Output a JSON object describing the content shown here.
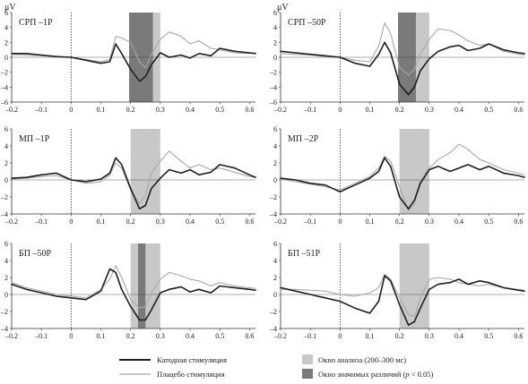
{
  "units": "μV",
  "colors": {
    "cathodal": "#1e1e1e",
    "placebo": "#a8a8a8",
    "analysis_window": "#c8c8c8",
    "significant_window": "#7a7a7a",
    "axis": "#333333"
  },
  "legend": {
    "cathodal": "Катодная стимуляция",
    "placebo": "Плацебо стимуляция",
    "analysis_window": "Окно анализа (200–300 мс)",
    "significant_window_prefix": "Окно значимых различий (",
    "significant_window_p": "p",
    "significant_window_suffix": " < 0.05)"
  },
  "chart_data": [
    {
      "type": "line",
      "label": "СРП   –1Р",
      "xlim": [
        -0.2,
        0.62
      ],
      "ylim": [
        -6,
        6
      ],
      "xticks": [
        "–0.2",
        "–0.1",
        "0",
        "0.1",
        "0.2",
        "0.3",
        "0.4",
        "0.5",
        "0.6"
      ],
      "yticks": [
        "6",
        "4",
        "2",
        "0",
        "–2",
        "–4",
        "–6"
      ],
      "analysis_window": [
        0.2,
        0.3
      ],
      "significant_window": [
        0.195,
        0.275
      ],
      "series": [
        {
          "name": "Катодная стимуляция",
          "x": [
            -0.2,
            -0.15,
            -0.1,
            -0.05,
            0,
            0.05,
            0.1,
            0.13,
            0.15,
            0.17,
            0.2,
            0.23,
            0.25,
            0.27,
            0.3,
            0.33,
            0.37,
            0.4,
            0.43,
            0.47,
            0.5,
            0.55,
            0.6,
            0.62
          ],
          "y": [
            0.5,
            0.5,
            0.3,
            0.1,
            0,
            -0.4,
            -0.8,
            -0.6,
            1.8,
            0.5,
            -1.6,
            -3.2,
            -2.6,
            -1.0,
            0.6,
            0.0,
            0.3,
            -0.1,
            0.5,
            0.2,
            1.2,
            0.8,
            0.6,
            0.5
          ]
        },
        {
          "name": "Плацебо стимуляция",
          "x": [
            -0.2,
            -0.15,
            -0.1,
            -0.05,
            0,
            0.05,
            0.1,
            0.13,
            0.15,
            0.17,
            0.2,
            0.23,
            0.25,
            0.27,
            0.3,
            0.33,
            0.37,
            0.4,
            0.43,
            0.47,
            0.5,
            0.55,
            0.6,
            0.62
          ],
          "y": [
            0.4,
            0.3,
            0.2,
            0.1,
            0,
            -0.3,
            -0.6,
            -0.3,
            2.8,
            2.6,
            2.0,
            -0.6,
            -1.4,
            0.4,
            2.4,
            3.4,
            2.8,
            1.8,
            2.2,
            1.2,
            1.0,
            0.6,
            0.5,
            0.6
          ]
        }
      ]
    },
    {
      "type": "line",
      "label": "СРП   –50Р",
      "xlim": [
        -0.2,
        0.62
      ],
      "ylim": [
        -6,
        6
      ],
      "xticks": [
        "–0.2",
        "–0.1",
        "0",
        "0.1",
        "0.2",
        "0.3",
        "0.4",
        "0.5",
        "0.6"
      ],
      "yticks": [
        "6",
        "4",
        "2",
        "0",
        "–2",
        "–4",
        "–6"
      ],
      "analysis_window": [
        0.2,
        0.3
      ],
      "significant_window": [
        0.195,
        0.255
      ],
      "series": [
        {
          "name": "Катодная стимуляция",
          "x": [
            -0.2,
            -0.15,
            -0.1,
            -0.05,
            0,
            0.05,
            0.1,
            0.13,
            0.15,
            0.17,
            0.2,
            0.23,
            0.25,
            0.27,
            0.3,
            0.33,
            0.37,
            0.4,
            0.43,
            0.47,
            0.5,
            0.55,
            0.6,
            0.62
          ],
          "y": [
            0.8,
            0.6,
            0.4,
            0.2,
            0,
            -0.8,
            -1.2,
            0.4,
            2.0,
            0.6,
            -3.6,
            -5.0,
            -4.0,
            -1.8,
            -0.2,
            0.8,
            1.4,
            1.6,
            0.9,
            1.2,
            1.8,
            1.0,
            0.6,
            0.5
          ]
        },
        {
          "name": "Плацебо стимуляция",
          "x": [
            -0.2,
            -0.15,
            -0.1,
            -0.05,
            0,
            0.05,
            0.1,
            0.13,
            0.15,
            0.17,
            0.2,
            0.23,
            0.25,
            0.27,
            0.3,
            0.33,
            0.37,
            0.4,
            0.43,
            0.47,
            0.5,
            0.55,
            0.6,
            0.62
          ],
          "y": [
            0.5,
            0.4,
            0.3,
            0.1,
            0,
            -0.4,
            -0.6,
            1.5,
            4.6,
            3.2,
            -1.4,
            -2.4,
            -1.6,
            0.4,
            2.4,
            3.8,
            3.6,
            3.0,
            2.2,
            1.6,
            1.8,
            0.8,
            0.4,
            0.3
          ]
        }
      ]
    },
    {
      "type": "line",
      "label": "МП   –1Р",
      "xlim": [
        -0.2,
        0.62
      ],
      "ylim": [
        -4,
        6
      ],
      "xticks": [
        "–0.2",
        "–0.1",
        "0",
        "0.1",
        "0.2",
        "0.3",
        "0.4",
        "0.5",
        "0.6"
      ],
      "yticks": [
        "6",
        "4",
        "2",
        "0",
        "–2",
        "–4"
      ],
      "analysis_window": [
        0.2,
        0.3
      ],
      "significant_window": null,
      "series": [
        {
          "name": "Катодная стимуляция",
          "x": [
            -0.2,
            -0.15,
            -0.1,
            -0.05,
            0,
            0.05,
            0.1,
            0.13,
            0.15,
            0.17,
            0.2,
            0.23,
            0.25,
            0.27,
            0.3,
            0.33,
            0.37,
            0.4,
            0.43,
            0.47,
            0.5,
            0.55,
            0.6,
            0.62
          ],
          "y": [
            0.2,
            0.3,
            0.6,
            0.8,
            0,
            -0.2,
            0.1,
            0.8,
            2.6,
            1.8,
            -1.0,
            -3.4,
            -3.0,
            -1.0,
            0.2,
            1.2,
            0.8,
            1.2,
            0.6,
            0.9,
            1.8,
            1.4,
            0.6,
            0.3
          ]
        },
        {
          "name": "Плацебо стимуляция",
          "x": [
            -0.2,
            -0.15,
            -0.1,
            -0.05,
            0,
            0.05,
            0.1,
            0.13,
            0.15,
            0.17,
            0.2,
            0.23,
            0.25,
            0.27,
            0.3,
            0.33,
            0.37,
            0.4,
            0.43,
            0.47,
            0.5,
            0.55,
            0.6,
            0.62
          ],
          "y": [
            0.1,
            0.2,
            0.4,
            0.5,
            0,
            -0.4,
            -0.2,
            0.6,
            2.0,
            1.4,
            -1.2,
            -2.8,
            -1.8,
            0.8,
            2.2,
            3.4,
            2.2,
            1.4,
            1.8,
            1.2,
            1.4,
            0.9,
            0.4,
            0.3
          ]
        }
      ]
    },
    {
      "type": "line",
      "label": "МП   –2Р",
      "xlim": [
        -0.2,
        0.62
      ],
      "ylim": [
        -4,
        6
      ],
      "xticks": [
        "–0.2",
        "–0.1",
        "0",
        "0.1",
        "0.2",
        "0.3",
        "0.4",
        "0.5",
        "0.6"
      ],
      "yticks": [
        "6",
        "4",
        "2",
        "0",
        "–2",
        "–4"
      ],
      "analysis_window": [
        0.2,
        0.3
      ],
      "significant_window": null,
      "series": [
        {
          "name": "Катодная стимуляция",
          "x": [
            -0.2,
            -0.15,
            -0.1,
            -0.05,
            0,
            0.05,
            0.1,
            0.13,
            0.15,
            0.17,
            0.2,
            0.23,
            0.25,
            0.27,
            0.3,
            0.33,
            0.37,
            0.4,
            0.43,
            0.47,
            0.5,
            0.55,
            0.6,
            0.62
          ],
          "y": [
            0.2,
            0.0,
            -0.4,
            -0.6,
            -1.4,
            -0.6,
            0.2,
            1.0,
            2.6,
            1.6,
            -2.0,
            -3.4,
            -2.4,
            -0.4,
            1.2,
            1.6,
            1.0,
            1.4,
            1.8,
            1.2,
            1.6,
            0.8,
            0.5,
            0.3
          ]
        },
        {
          "name": "Плацебо стимуляция",
          "x": [
            -0.2,
            -0.15,
            -0.1,
            -0.05,
            0,
            0.05,
            0.1,
            0.13,
            0.15,
            0.17,
            0.2,
            0.23,
            0.25,
            0.27,
            0.3,
            0.33,
            0.37,
            0.4,
            0.43,
            0.47,
            0.5,
            0.55,
            0.6,
            0.62
          ],
          "y": [
            0.1,
            -0.2,
            -0.5,
            -0.8,
            -1.2,
            -0.4,
            0.4,
            1.4,
            2.8,
            2.2,
            -0.8,
            -3.6,
            -2.8,
            0.0,
            1.4,
            2.4,
            3.2,
            4.2,
            3.6,
            2.4,
            2.0,
            1.2,
            0.8,
            0.6
          ]
        }
      ]
    },
    {
      "type": "line",
      "label": "БП   –50Р",
      "xlim": [
        -0.2,
        0.62
      ],
      "ylim": [
        -4,
        6
      ],
      "xticks": [
        "–0.2",
        "–0.1",
        "0",
        "0.1",
        "0.2",
        "0.3",
        "0.4",
        "0.5",
        "0.6"
      ],
      "yticks": [
        "6",
        "4",
        "2",
        "0",
        "–2",
        "–4"
      ],
      "analysis_window": [
        0.2,
        0.3
      ],
      "significant_window": [
        0.225,
        0.25
      ],
      "series": [
        {
          "name": "Катодная стимуляция",
          "x": [
            -0.2,
            -0.15,
            -0.1,
            -0.05,
            0,
            0.05,
            0.1,
            0.13,
            0.15,
            0.17,
            0.2,
            0.23,
            0.25,
            0.27,
            0.3,
            0.33,
            0.37,
            0.4,
            0.43,
            0.47,
            0.5,
            0.55,
            0.6,
            0.62
          ],
          "y": [
            1.2,
            0.6,
            0.2,
            -0.2,
            -0.4,
            -0.6,
            0.4,
            3.0,
            2.6,
            0.6,
            -1.4,
            -3.0,
            -3.0,
            -1.8,
            0.2,
            0.6,
            0.9,
            0.3,
            0.6,
            0.2,
            1.0,
            0.8,
            0.6,
            0.5
          ]
        },
        {
          "name": "Плацебо стимуляция",
          "x": [
            -0.2,
            -0.15,
            -0.1,
            -0.05,
            0,
            0.05,
            0.1,
            0.13,
            0.15,
            0.17,
            0.2,
            0.23,
            0.25,
            0.27,
            0.3,
            0.33,
            0.37,
            0.4,
            0.43,
            0.47,
            0.5,
            0.55,
            0.6,
            0.62
          ],
          "y": [
            1.4,
            0.8,
            0.4,
            0.0,
            -0.2,
            -0.4,
            0.6,
            1.8,
            3.4,
            2.0,
            -0.6,
            -1.6,
            -1.4,
            0.2,
            1.8,
            2.6,
            2.2,
            1.8,
            1.6,
            1.0,
            1.4,
            1.0,
            0.8,
            0.7
          ]
        }
      ]
    },
    {
      "type": "line",
      "label": "БП   –51Р",
      "xlim": [
        -0.2,
        0.62
      ],
      "ylim": [
        -4,
        6
      ],
      "xticks": [
        "–0.2",
        "–0.1",
        "0",
        "0.1",
        "0.2",
        "0.3",
        "0.4",
        "0.5",
        "0.6"
      ],
      "yticks": [
        "6",
        "4",
        "2",
        "0",
        "–2",
        "–4"
      ],
      "analysis_window": [
        0.2,
        0.3
      ],
      "significant_window": null,
      "series": [
        {
          "name": "Катодная стимуляция",
          "x": [
            -0.2,
            -0.15,
            -0.1,
            -0.05,
            0,
            0.05,
            0.1,
            0.13,
            0.15,
            0.17,
            0.2,
            0.23,
            0.25,
            0.27,
            0.3,
            0.33,
            0.37,
            0.4,
            0.43,
            0.47,
            0.5,
            0.55,
            0.6,
            0.62
          ],
          "y": [
            0.8,
            0.4,
            0.0,
            -0.4,
            -0.8,
            -1.6,
            -2.2,
            -0.8,
            2.2,
            1.6,
            -1.2,
            -3.6,
            -3.2,
            -1.6,
            0.6,
            1.2,
            1.4,
            1.8,
            1.2,
            1.6,
            1.4,
            0.8,
            0.5,
            0.4
          ]
        },
        {
          "name": "Плацебо стимуляция",
          "x": [
            -0.2,
            -0.15,
            -0.1,
            -0.05,
            0,
            0.05,
            0.1,
            0.13,
            0.15,
            0.17,
            0.2,
            0.23,
            0.25,
            0.27,
            0.3,
            0.33,
            0.37,
            0.4,
            0.43,
            0.47,
            0.5,
            0.55,
            0.6,
            0.62
          ],
          "y": [
            0.6,
            0.6,
            0.5,
            0.4,
            0.0,
            -0.2,
            0.2,
            0.8,
            2.4,
            1.8,
            -0.4,
            -2.4,
            -2.6,
            -0.4,
            1.8,
            2.0,
            1.8,
            1.4,
            1.2,
            1.0,
            1.2,
            0.8,
            0.6,
            0.5
          ]
        }
      ]
    }
  ]
}
